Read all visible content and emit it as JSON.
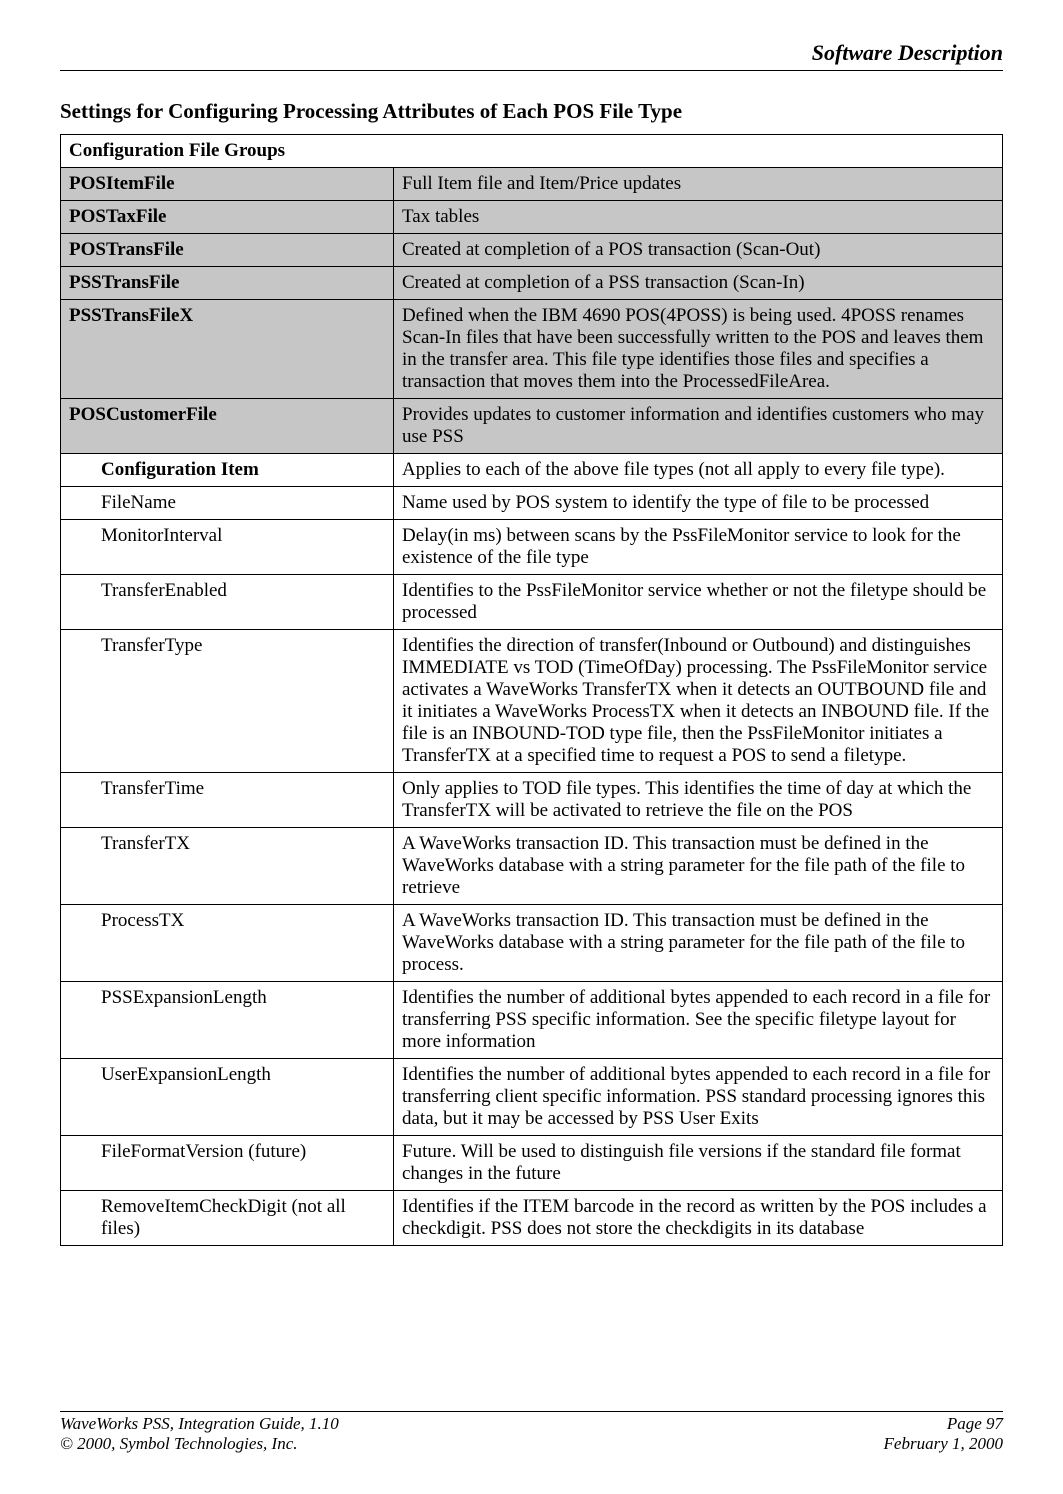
{
  "header": {
    "title": "Software Description"
  },
  "section": {
    "title": "Settings for Configuring Processing Attributes of Each POS File Type"
  },
  "groupsHeader": "Configuration File Groups",
  "fileGroups": [
    {
      "name": "POSItemFile",
      "desc": "Full Item file and Item/Price updates"
    },
    {
      "name": "POSTaxFile",
      "desc": "Tax tables"
    },
    {
      "name": "POSTransFile",
      "desc": "Created at completion of a POS transaction (Scan-Out)"
    },
    {
      "name": "PSSTransFile",
      "desc": "Created at completion of a PSS transaction (Scan-In)"
    },
    {
      "name": "PSSTransFileX",
      "desc": "Defined when the IBM 4690 POS(4POSS) is being used.  4POSS renames Scan-In files that have been successfully written to the POS and leaves them in the transfer area.  This file type identifies those files and specifies a transaction that moves them into the ProcessedFileArea."
    },
    {
      "name": "POSCustomerFile",
      "desc": "Provides updates to customer information and identifies customers who may use PSS"
    }
  ],
  "configItemHeader": {
    "label": "Configuration Item",
    "desc": "Applies to each of the above file types (not all apply to every file type)."
  },
  "configItems": [
    {
      "name": "FileName",
      "desc": "Name used by POS system to identify the type of file to be processed"
    },
    {
      "name": "MonitorInterval",
      "desc": "Delay(in ms) between scans by the PssFileMonitor service to look for the existence of the file type"
    },
    {
      "name": "TransferEnabled",
      "desc": "Identifies to the PssFileMonitor service whether or not the filetype should be processed"
    },
    {
      "name": "TransferType",
      "desc": "Identifies the direction of transfer(Inbound or Outbound) and distinguishes IMMEDIATE vs TOD (TimeOfDay) processing.  The PssFileMonitor service activates a WaveWorks TransferTX when it detects an OUTBOUND file and it initiates a WaveWorks ProcessTX when it detects an INBOUND file.  If the file is an INBOUND-TOD type file, then the PssFileMonitor initiates a TransferTX at a specified time to request a POS to send a filetype."
    },
    {
      "name": "TransferTime",
      "desc": "Only applies to TOD file types.  This identifies the time of day at which the TransferTX will be activated to retrieve the file on the POS"
    },
    {
      "name": "TransferTX",
      "desc": "A WaveWorks transaction ID.  This transaction must be defined in the WaveWorks database with a string parameter for the file path of the file to retrieve"
    },
    {
      "name": "ProcessTX",
      "desc": "A WaveWorks transaction ID.  This transaction must be defined in the WaveWorks database with a string parameter for the file path of the file to process."
    },
    {
      "name": "PSSExpansionLength",
      "desc": "Identifies the number of additional bytes appended to each record in a file for transferring PSS specific information.  See the specific filetype layout for more information"
    },
    {
      "name": "UserExpansionLength",
      "desc": "Identifies the number of additional bytes appended to each record in a file for transferring client specific information.  PSS standard processing ignores this data, but it may be accessed by PSS User Exits"
    },
    {
      "name": "FileFormatVersion (future)",
      "desc": "Future.  Will be used to distinguish file versions if the standard file format changes in the future"
    },
    {
      "name": "RemoveItemCheckDigit (not all files)",
      "desc": "Identifies if the ITEM barcode in the record as written by the POS includes a checkdigit.  PSS does not store the checkdigits in its database"
    }
  ],
  "footer": {
    "leftTop": "WaveWorks PSS, Integration Guide, 1.10",
    "rightTop": "Page 97",
    "leftBottom": "© 2000, Symbol Technologies, Inc.",
    "rightBottom": "February 1, 2000"
  },
  "style": {
    "shadedBg": "#c6c6c6",
    "textColor": "#000000",
    "pageBg": "#ffffff",
    "borderColor": "#000000"
  }
}
